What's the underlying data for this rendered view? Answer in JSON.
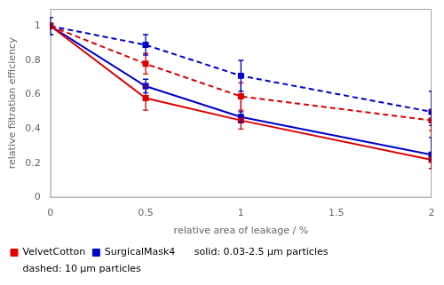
{
  "chart_data": {
    "type": "line",
    "x": [
      0.0,
      0.5,
      1.0,
      2.0
    ],
    "xlabel": "relative area of leakage / %",
    "ylabel": "relative filtration efficiency",
    "xlim": [
      0,
      2
    ],
    "ylim": [
      0,
      1.1
    ],
    "xticks": [
      0,
      0.5,
      1,
      1.5,
      2
    ],
    "yticks": [
      0,
      0.2,
      0.4,
      0.6,
      0.8,
      1
    ],
    "grid": false,
    "legend": "lower left",
    "marker": "square",
    "annotations": [
      "solid: 0.03-2.5 µm particles",
      "dashed: 10 µm particles"
    ],
    "series": [
      {
        "name": "VelvetCotton",
        "color": "#dd0000",
        "line_style": "solid",
        "values": [
          1.0,
          0.58,
          0.45,
          0.22
        ],
        "yerr_lo": [
          0.0,
          0.07,
          0.05,
          0.05
        ],
        "yerr_hi": [
          0.0,
          0.07,
          0.15,
          0.23
        ]
      },
      {
        "name": "VelvetCotton",
        "color": "#dd0000",
        "line_style": "dashed",
        "values": [
          1.0,
          0.78,
          0.59,
          0.45
        ],
        "yerr_lo": [
          0.0,
          0.06,
          0.08,
          0.06
        ],
        "yerr_hi": [
          0.0,
          0.06,
          0.08,
          0.06
        ]
      },
      {
        "name": "SurgicalMask4",
        "color": "#0000cc",
        "line_style": "solid",
        "values": [
          1.0,
          0.65,
          0.47,
          0.25
        ],
        "yerr_lo": [
          0.05,
          0.04,
          0.03,
          0.03
        ],
        "yerr_hi": [
          0.05,
          0.04,
          0.03,
          0.1
        ]
      },
      {
        "name": "SurgicalMask4",
        "color": "#0000cc",
        "line_style": "dashed",
        "values": [
          1.0,
          0.89,
          0.71,
          0.5
        ],
        "yerr_lo": [
          0.05,
          0.06,
          0.09,
          0.08
        ],
        "yerr_hi": [
          0.05,
          0.06,
          0.09,
          0.12
        ]
      }
    ]
  }
}
